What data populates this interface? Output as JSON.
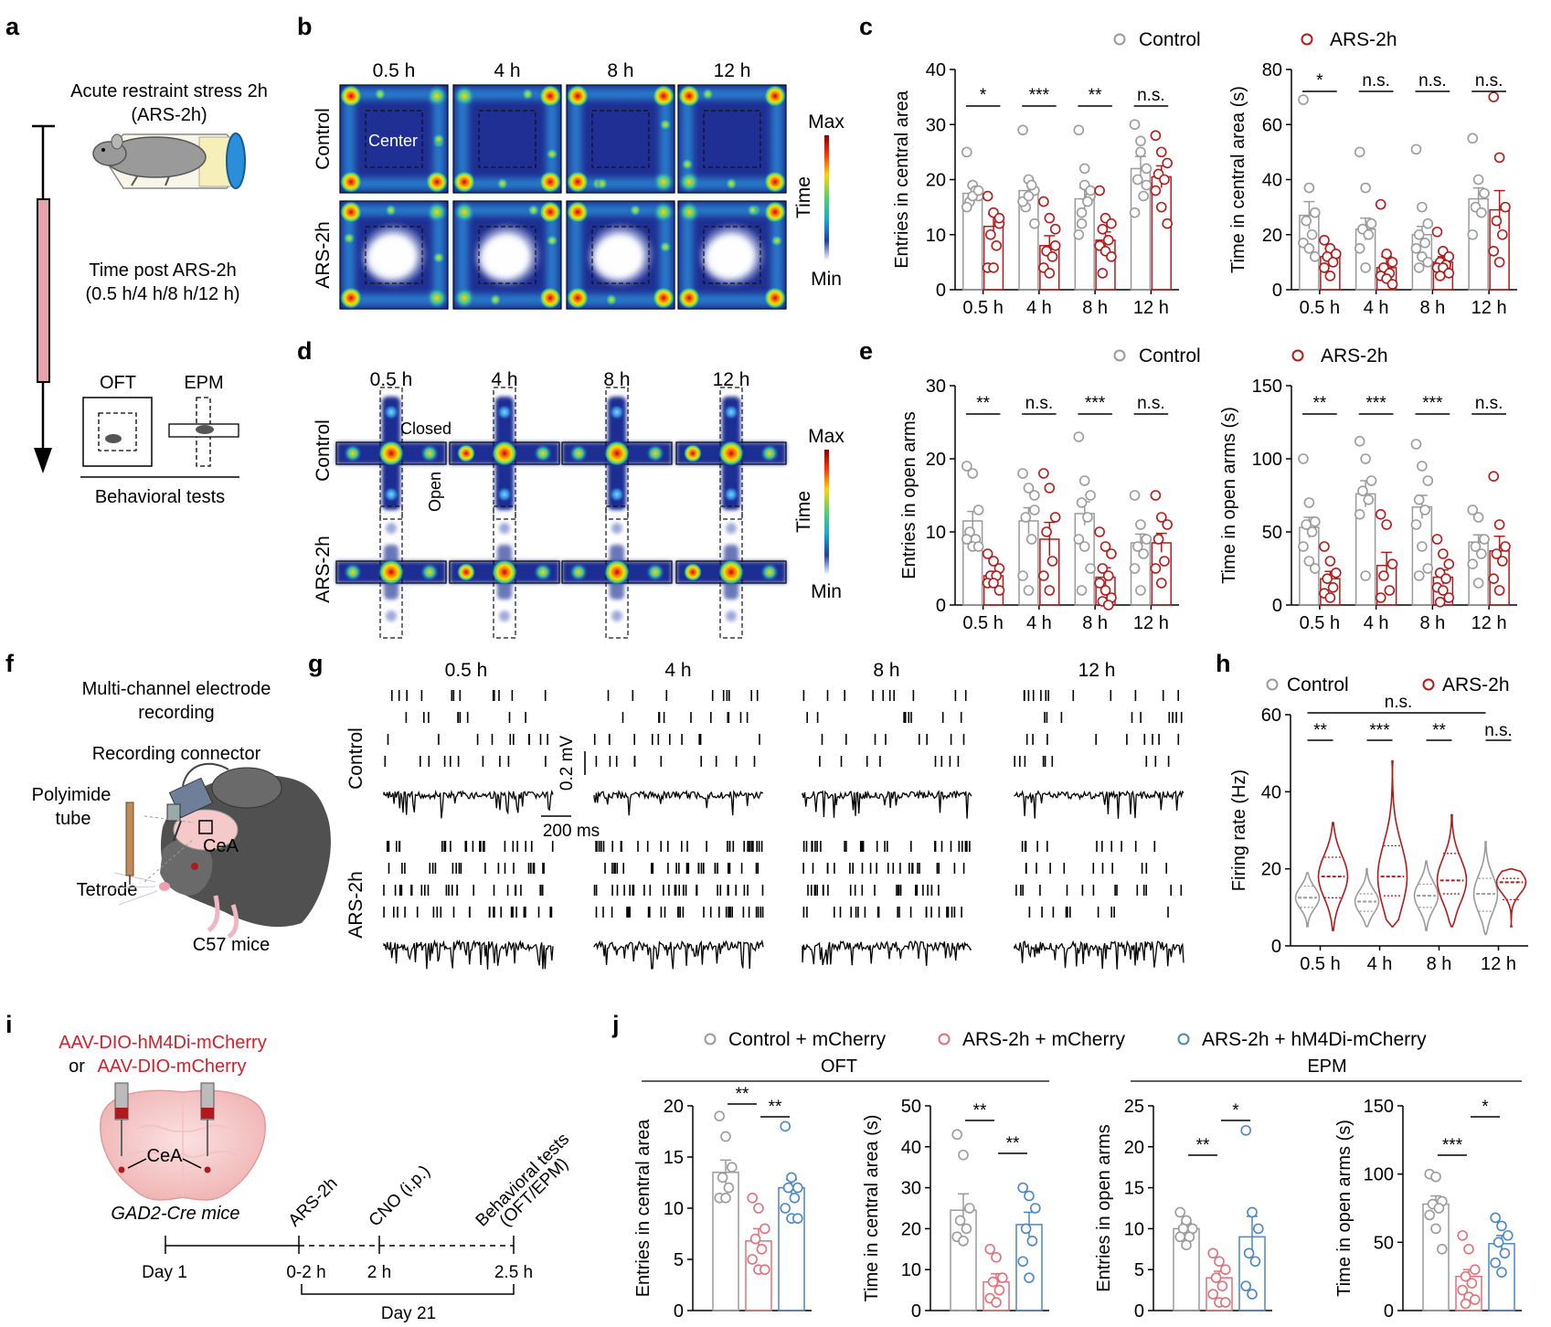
{
  "colors": {
    "control": "#9a9a9a",
    "ars": "#b01a1a",
    "ars_light": "#e0707b",
    "hm4di": "#4a86c4",
    "stress_bar": "#e3a3a8",
    "red_text": "#d0202e"
  },
  "panel_labels": [
    "a",
    "b",
    "c",
    "d",
    "e",
    "f",
    "g",
    "h",
    "i",
    "j"
  ],
  "timepoints": [
    "0.5 h",
    "4 h",
    "8 h",
    "12 h"
  ],
  "legend": {
    "control": "Control",
    "ars": "ARS-2h"
  },
  "panel_a": {
    "title_line1": "Acute restraint stress 2h",
    "title_line2": "(ARS-2h)",
    "time_line1": "Time post ARS-2h",
    "time_line2": "(0.5 h/4 h/8 h/12 h)",
    "oft": "OFT",
    "epm": "EPM",
    "tests": "Behavioral tests"
  },
  "panel_b": {
    "rows": [
      "Control",
      "ARS-2h"
    ],
    "center_label": "Center",
    "scale": {
      "max": "Max",
      "label": "Time",
      "min": "Min"
    }
  },
  "panel_d": {
    "rows": [
      "Control",
      "ARS-2h"
    ],
    "closed_label": "Closed",
    "open_label": "Open",
    "scale": {
      "max": "Max",
      "label": "Time",
      "min": "Min"
    }
  },
  "panel_f": {
    "title_line1": "Multi-channel electrode",
    "title_line2": "recording",
    "connector": "Recording connector",
    "tube_line1": "Polyimide",
    "tube_line2": "tube",
    "tetrode": "Tetrode",
    "region": "CeA",
    "mice": "C57 mice"
  },
  "panel_g": {
    "rows": [
      "Control",
      "ARS-2h"
    ],
    "scale_v": "0.2 mV",
    "scale_h": "200 ms"
  },
  "panel_i": {
    "virus_line1": "AAV-DIO-hM4Di-mCherry",
    "virus_or": "or",
    "virus_line2": "AAV-DIO-mCherry",
    "region": "CeA",
    "mice": "GAD2-Cre mice",
    "events": [
      "ARS-2h",
      "CNO (i.p.)",
      "Behavioral tests",
      "(OFT/EPM)"
    ],
    "ticks": [
      "Day 1",
      "0-2 h",
      "2 h",
      "2.5 h"
    ],
    "day": "Day 21"
  },
  "panel_j": {
    "legend": [
      "Control + mCherry",
      "ARS-2h + mCherry",
      "ARS-2h + hM4Di-mCherry"
    ],
    "section_oft": "OFT",
    "section_epm": "EPM"
  },
  "chart_data": [
    {
      "id": "c-entries",
      "type": "bar",
      "ylabel": "Entries in central area",
      "categories": [
        "0.5 h",
        "4 h",
        "8 h",
        "12 h"
      ],
      "ylim": [
        0,
        40
      ],
      "yticks": [
        0,
        10,
        20,
        30,
        40
      ],
      "series": [
        {
          "name": "Control",
          "values": [
            17.5,
            18,
            16.5,
            22
          ],
          "err": [
            1.3,
            1.8,
            2,
            2.2
          ],
          "points": [
            [
              25,
              19,
              17,
              16,
              18,
              15,
              17,
              18
            ],
            [
              29,
              20,
              18,
              15,
              19,
              16,
              17,
              12
            ],
            [
              29,
              22,
              17,
              14,
              16,
              10,
              19,
              18,
              12
            ],
            [
              30,
              27,
              22,
              20,
              17,
              14,
              25,
              19
            ]
          ]
        },
        {
          "name": "ARS-2h",
          "values": [
            11.5,
            8,
            9,
            20.5
          ],
          "err": [
            2.2,
            1.8,
            1.5,
            2
          ],
          "points": [
            [
              17,
              14,
              12,
              10,
              8,
              4,
              4,
              13
            ],
            [
              16,
              13,
              11,
              7,
              6,
              4,
              3,
              8
            ],
            [
              18,
              13,
              12,
              11,
              9,
              8,
              7,
              6,
              3
            ],
            [
              28,
              25,
              23,
              21,
              20,
              18,
              15,
              12
            ]
          ]
        }
      ],
      "sig": [
        "*",
        "***",
        "**",
        "n.s."
      ]
    },
    {
      "id": "c-time",
      "type": "bar",
      "ylabel": "Time in central area (s)",
      "categories": [
        "0.5 h",
        "4 h",
        "8 h",
        "12 h"
      ],
      "ylim": [
        0,
        80
      ],
      "yticks": [
        0,
        20,
        40,
        60,
        80
      ],
      "series": [
        {
          "name": "Control",
          "values": [
            27,
            22,
            20,
            33
          ],
          "err": [
            5,
            4,
            3,
            4
          ],
          "points": [
            [
              69,
              37,
              28,
              25,
              20,
              17,
              15,
              12
            ],
            [
              50,
              37,
              24,
              22,
              20,
              15,
              8
            ],
            [
              51,
              30,
              24,
              20,
              17,
              15,
              12,
              10,
              8
            ],
            [
              55,
              40,
              35,
              30,
              28,
              20
            ]
          ]
        },
        {
          "name": "ARS-2h",
          "values": [
            12,
            8,
            10,
            29
          ],
          "err": [
            3,
            4,
            2,
            7
          ],
          "points": [
            [
              18,
              15,
              13,
              12,
              10,
              8,
              5
            ],
            [
              31,
              13,
              10,
              8,
              6,
              5,
              4,
              2
            ],
            [
              21,
              14,
              12,
              10,
              9,
              8,
              8,
              6,
              5
            ],
            [
              70,
              48,
              30,
              25,
              20,
              14,
              10
            ]
          ]
        }
      ],
      "sig": [
        "*",
        "n.s.",
        "n.s.",
        "n.s."
      ]
    },
    {
      "id": "e-entries",
      "type": "bar",
      "ylabel": "Entries in open arms",
      "categories": [
        "0.5 h",
        "4 h",
        "8 h",
        "12 h"
      ],
      "ylim": [
        0,
        30
      ],
      "yticks": [
        0,
        10,
        20,
        30
      ],
      "series": [
        {
          "name": "Control",
          "values": [
            11.5,
            11.5,
            12.5,
            8.5
          ],
          "err": [
            1.3,
            1.8,
            1.6,
            1.2
          ],
          "points": [
            [
              19,
              18,
              13,
              10,
              9,
              9,
              8,
              8
            ],
            [
              18,
              16,
              15,
              12,
              9,
              4,
              2,
              13
            ],
            [
              23,
              17,
              15,
              14,
              12,
              9,
              8,
              5,
              2
            ],
            [
              15,
              11,
              9,
              8,
              7,
              5,
              2
            ]
          ]
        },
        {
          "name": "ARS-2h",
          "values": [
            4,
            9,
            3.8,
            8.5
          ],
          "err": [
            0.6,
            2.3,
            1.3,
            1.3
          ],
          "points": [
            [
              7,
              6,
              5,
              4,
              4,
              3,
              3,
              2
            ],
            [
              18,
              16,
              12,
              10,
              6,
              4,
              2
            ],
            [
              10,
              8,
              7,
              5,
              4,
              3,
              2,
              1,
              0.5,
              0
            ],
            [
              15,
              12,
              11,
              9,
              6,
              5,
              3
            ]
          ]
        }
      ],
      "sig": [
        "**",
        "n.s.",
        "***",
        "n.s."
      ]
    },
    {
      "id": "e-time",
      "type": "bar",
      "ylabel": "Time in open arms (s)",
      "categories": [
        "0.5 h",
        "4 h",
        "8 h",
        "12 h"
      ],
      "ylim": [
        0,
        150
      ],
      "yticks": [
        0,
        50,
        100,
        150
      ],
      "series": [
        {
          "name": "Control",
          "values": [
            53,
            76,
            67,
            43
          ],
          "err": [
            7,
            9,
            8,
            5
          ],
          "points": [
            [
              100,
              70,
              57,
              55,
              50,
              40,
              30,
              25
            ],
            [
              112,
              100,
              85,
              78,
              72,
              62,
              20
            ],
            [
              110,
              95,
              85,
              72,
              65,
              55,
              40,
              25,
              20
            ],
            [
              65,
              60,
              45,
              40,
              35,
              28,
              15
            ]
          ]
        },
        {
          "name": "ARS-2h",
          "values": [
            18,
            27,
            19,
            37
          ],
          "err": [
            5,
            9,
            5,
            10
          ],
          "points": [
            [
              40,
              30,
              22,
              18,
              12,
              8,
              5
            ],
            [
              62,
              55,
              28,
              20,
              10,
              5
            ],
            [
              45,
              35,
              28,
              22,
              18,
              12,
              10,
              5,
              2
            ],
            [
              88,
              55,
              40,
              35,
              30,
              18,
              10
            ]
          ]
        }
      ],
      "sig": [
        "**",
        "***",
        "***",
        "n.s."
      ]
    },
    {
      "id": "h-firing",
      "type": "violin",
      "ylabel": "Firing rate (Hz)",
      "categories": [
        "0.5 h",
        "4 h",
        "8 h",
        "12 h"
      ],
      "ylim": [
        0,
        60
      ],
      "yticks": [
        0,
        20,
        40,
        60
      ],
      "series": [
        {
          "name": "Control",
          "min": [
            5,
            5,
            4,
            3
          ],
          "max": [
            19,
            20,
            22,
            27
          ],
          "median": [
            12.5,
            11.5,
            13,
            13.5
          ],
          "q1": [
            10,
            9,
            10,
            9
          ],
          "q3": [
            15.5,
            13.5,
            16,
            17.5
          ]
        },
        {
          "name": "ARS-2h",
          "min": [
            4,
            5,
            5,
            5
          ],
          "max": [
            32,
            48,
            34,
            20
          ],
          "median": [
            18,
            18,
            17,
            16.5
          ],
          "q1": [
            12.5,
            13,
            13.5,
            12
          ],
          "q3": [
            23,
            26,
            24,
            17.5
          ]
        }
      ],
      "sig": [
        "**",
        "***",
        "**",
        "n.s."
      ],
      "sig_overall": "n.s."
    },
    {
      "id": "j-oft-entries",
      "type": "bar",
      "ylabel": "Entries in central area",
      "categories": [
        "Control + mCherry",
        "ARS-2h + mCherry",
        "ARS-2h + hM4Di-mCherry"
      ],
      "ylim": [
        0,
        20
      ],
      "yticks": [
        0,
        5,
        10,
        15,
        20
      ],
      "values": [
        13.5,
        6.8,
        12
      ],
      "err": [
        1.2,
        1.2,
        0.8
      ],
      "points": [
        [
          19,
          17,
          14,
          13,
          12,
          11,
          11
        ],
        [
          11,
          10,
          8,
          7,
          6,
          5,
          4,
          4
        ],
        [
          18,
          13,
          12,
          12,
          11,
          10,
          9,
          9
        ]
      ],
      "sig": [
        {
          "from": 0,
          "to": 1,
          "text": "**"
        },
        {
          "from": 1,
          "to": 2,
          "text": "**"
        }
      ]
    },
    {
      "id": "j-oft-time",
      "type": "bar",
      "ylabel": "Time in central area (s)",
      "categories": [
        "Control + mCherry",
        "ARS-2h + mCherry",
        "ARS-2h + hM4Di-mCherry"
      ],
      "ylim": [
        0,
        50
      ],
      "yticks": [
        0,
        10,
        20,
        30,
        40,
        50
      ],
      "values": [
        24.5,
        7,
        21
      ],
      "err": [
        4,
        2,
        3
      ],
      "points": [
        [
          43,
          38,
          25,
          22,
          20,
          18,
          17
        ],
        [
          15,
          13,
          8,
          7,
          5,
          3,
          2
        ],
        [
          30,
          28,
          25,
          20,
          17,
          12,
          8
        ]
      ],
      "sig": [
        {
          "from": 0,
          "to": 1,
          "text": "**"
        },
        {
          "from": 1,
          "to": 2,
          "text": "**"
        }
      ]
    },
    {
      "id": "j-epm-entries",
      "type": "bar",
      "ylabel": "Entries in open arms",
      "categories": [
        "Control + mCherry",
        "ARS-2h + mCherry",
        "ARS-2h + hM4Di-mCherry"
      ],
      "ylim": [
        0,
        25
      ],
      "yticks": [
        0,
        5,
        10,
        15,
        20,
        25
      ],
      "values": [
        10,
        4,
        9
      ],
      "err": [
        0.7,
        0.8,
        2.5
      ],
      "points": [
        [
          12,
          11,
          10,
          10,
          9,
          9,
          8
        ],
        [
          7,
          6,
          5,
          4,
          3,
          2,
          1,
          1
        ],
        [
          22,
          12,
          10,
          7,
          6,
          3,
          2
        ]
      ],
      "sig": [
        {
          "from": 0,
          "to": 1,
          "text": "**"
        },
        {
          "from": 1,
          "to": 2,
          "text": "*"
        }
      ]
    },
    {
      "id": "j-epm-time",
      "type": "bar",
      "ylabel": "Time in open arms (s)",
      "categories": [
        "Control + mCherry",
        "ARS-2h + mCherry",
        "ARS-2h + hM4Di-mCherry"
      ],
      "ylim": [
        0,
        150
      ],
      "yticks": [
        0,
        50,
        100,
        150
      ],
      "values": [
        78,
        25,
        49
      ],
      "err": [
        6,
        5,
        6
      ],
      "points": [
        [
          100,
          98,
          80,
          78,
          75,
          70,
          60,
          45
        ],
        [
          55,
          45,
          30,
          25,
          20,
          15,
          10,
          8,
          5
        ],
        [
          68,
          62,
          55,
          50,
          42,
          35,
          28
        ]
      ],
      "sig": [
        {
          "from": 0,
          "to": 1,
          "text": "***"
        },
        {
          "from": 1,
          "to": 2,
          "text": "*"
        }
      ]
    }
  ]
}
